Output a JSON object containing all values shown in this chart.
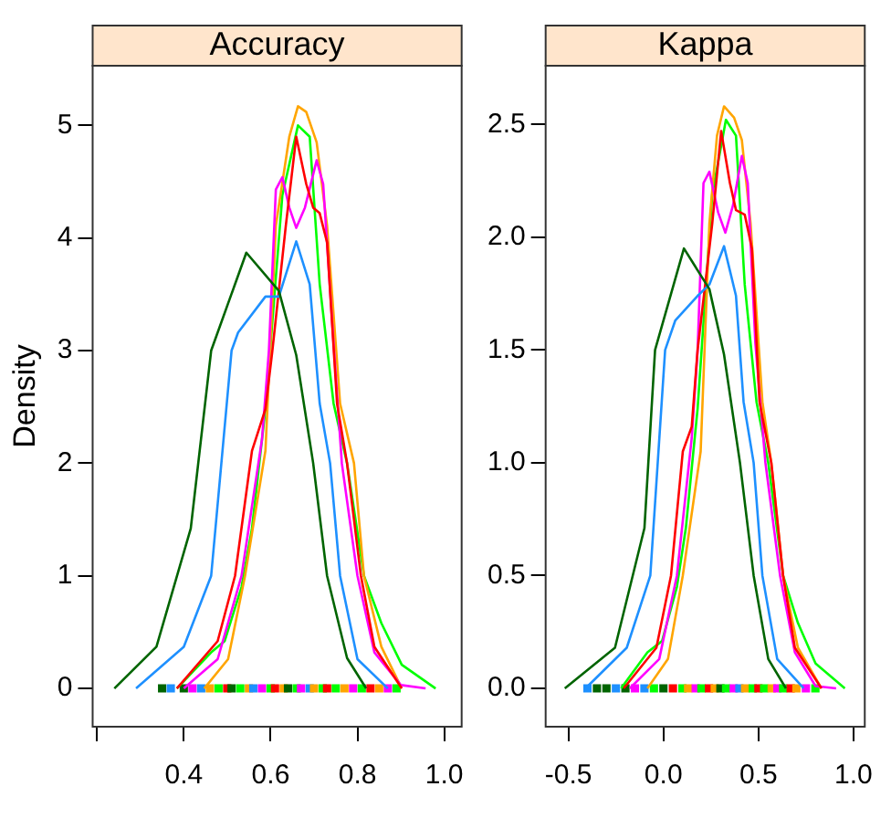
{
  "chart_data": [
    {
      "type": "line",
      "title": "Accuracy",
      "ylabel": "Density",
      "xlim": [
        0.19,
        1.04
      ],
      "xticks": [
        {
          "value": 0.2,
          "label": null
        },
        0.4,
        0.6,
        0.8,
        {
          "value": 1,
          "label": "1.0"
        }
      ],
      "ylim": [
        -0.34,
        5.53
      ],
      "yticks": [
        0,
        1,
        2,
        3,
        4,
        5
      ],
      "grid": false,
      "legend": false,
      "series": [
        {
          "color": "#006400",
          "x": [
            0.24,
            0.337,
            0.416,
            0.463,
            0.544,
            0.619,
            0.659,
            0.698,
            0.73,
            0.776,
            0.82
          ],
          "values": [
            0,
            0.37,
            1.42,
            3.0,
            3.87,
            3.53,
            2.96,
            2.0,
            1.0,
            0.27,
            0
          ]
        },
        {
          "color": "#1e90ff",
          "x": [
            0.29,
            0.4,
            0.463,
            0.51,
            0.525,
            0.588,
            0.619,
            0.659,
            0.69,
            0.713,
            0.737,
            0.76,
            0.8,
            0.87
          ],
          "values": [
            0,
            0.37,
            1.0,
            3.0,
            3.16,
            3.48,
            3.48,
            3.97,
            3.59,
            2.53,
            2.0,
            1.0,
            0.26,
            0
          ]
        },
        {
          "color": "#ff0000",
          "x": [
            0.384,
            0.478,
            0.518,
            0.557,
            0.588,
            0.604,
            0.635,
            0.659,
            0.682,
            0.698,
            0.713,
            0.73,
            0.753,
            0.776,
            0.808,
            0.839,
            0.902
          ],
          "values": [
            0,
            0.42,
            1.0,
            2.11,
            2.48,
            3.0,
            4.11,
            4.9,
            4.48,
            4.27,
            4.22,
            3.96,
            2.53,
            2.0,
            1.0,
            0.37,
            0
          ]
        },
        {
          "color": "#ff00ff",
          "x": [
            0.4,
            0.478,
            0.533,
            0.58,
            0.596,
            0.612,
            0.627,
            0.643,
            0.659,
            0.679,
            0.706,
            0.721,
            0.745,
            0.764,
            0.8,
            0.839,
            0.9,
            0.957
          ],
          "values": [
            0,
            0.26,
            1.0,
            2.21,
            3.0,
            4.43,
            4.54,
            4.27,
            4.09,
            4.27,
            4.69,
            4.48,
            3.06,
            2.0,
            1.0,
            0.32,
            0.03,
            0
          ]
        },
        {
          "color": "#ffa500",
          "x": [
            0.447,
            0.502,
            0.541,
            0.588,
            0.612,
            0.643,
            0.663,
            0.682,
            0.706,
            0.73,
            0.76,
            0.792,
            0.815,
            0.855,
            0.902
          ],
          "values": [
            0,
            0.26,
            1.0,
            2.11,
            4.11,
            4.9,
            5.17,
            5.12,
            4.85,
            4.11,
            2.53,
            2.0,
            1.0,
            0.37,
            0
          ]
        },
        {
          "color": "#00ff00",
          "x": [
            0.384,
            0.463,
            0.494,
            0.533,
            0.557,
            0.588,
            0.627,
            0.663,
            0.69,
            0.713,
            0.745,
            0.776,
            0.815,
            0.855,
            0.902,
            0.98
          ],
          "values": [
            0,
            0.32,
            0.42,
            0.9,
            1.42,
            2.48,
            4.38,
            5.0,
            4.9,
            3.59,
            2.53,
            2.0,
            1.0,
            0.58,
            0.21,
            0
          ]
        },
        {
          "type": "scatter",
          "marker": "square",
          "x": [
            0.35,
            0.37,
            0.4,
            0.42,
            0.44,
            0.46,
            0.48,
            0.5,
            0.51,
            0.53,
            0.55,
            0.56,
            0.58,
            0.6,
            0.61,
            0.63,
            0.64,
            0.66,
            0.67,
            0.69,
            0.7,
            0.72,
            0.73,
            0.75,
            0.77,
            0.79,
            0.81,
            0.83,
            0.85,
            0.87,
            0.89
          ],
          "values": [
            0,
            0,
            0,
            0,
            0,
            0,
            0,
            0,
            0,
            0,
            0,
            0,
            0,
            0,
            0,
            0,
            0,
            0,
            0,
            0,
            0,
            0,
            0,
            0,
            0,
            0,
            0,
            0,
            0,
            0,
            0
          ],
          "colors": [
            "#006400",
            "#1e90ff",
            "#006400",
            "#ff00ff",
            "#1e90ff",
            "#ffa500",
            "#00ff00",
            "#ff0000",
            "#006400",
            "#00ff00",
            "#ffa500",
            "#1e90ff",
            "#ff00ff",
            "#00ff00",
            "#ff0000",
            "#ffa500",
            "#006400",
            "#00ff00",
            "#ff00ff",
            "#1e90ff",
            "#ffa500",
            "#00ff00",
            "#ff0000",
            "#00ff00",
            "#ffa500",
            "#ff00ff",
            "#00ff00",
            "#ff0000",
            "#ffa500",
            "#ff00ff",
            "#00ff00"
          ]
        }
      ]
    },
    {
      "type": "line",
      "title": "Kappa",
      "xlim": [
        -0.62,
        1.06
      ],
      "xticks": [
        -0.5,
        {
          "value": 0,
          "label": "0.0"
        },
        0.5,
        {
          "value": 1,
          "label": "1.0"
        }
      ],
      "ylim": [
        -0.17,
        2.76
      ],
      "yticks": [
        {
          "value": 0,
          "label": "0.0"
        },
        0.5,
        {
          "value": 1,
          "label": "1.0"
        },
        1.5,
        {
          "value": 2,
          "label": "2.0"
        },
        2.5
      ],
      "grid": false,
      "legend": false,
      "series": [
        {
          "color": "#006400",
          "x": [
            -0.519,
            -0.255,
            -0.1,
            -0.044,
            0.108,
            0.242,
            0.319,
            0.403,
            0.475,
            0.552,
            0.645
          ],
          "values": [
            0,
            0.18,
            0.71,
            1.5,
            1.95,
            1.77,
            1.48,
            1.0,
            0.5,
            0.13,
            0
          ]
        },
        {
          "color": "#1e90ff",
          "x": [
            -0.41,
            -0.193,
            -0.069,
            0.009,
            0.062,
            0.18,
            0.242,
            0.319,
            0.382,
            0.422,
            0.475,
            0.521,
            0.599,
            0.738
          ],
          "values": [
            0,
            0.18,
            0.5,
            1.5,
            1.63,
            1.74,
            1.79,
            1.96,
            1.74,
            1.27,
            1.0,
            0.5,
            0.13,
            0
          ]
        },
        {
          "color": "#ff0000",
          "x": [
            -0.209,
            -0.037,
            0.04,
            0.102,
            0.149,
            0.18,
            0.257,
            0.304,
            0.35,
            0.382,
            0.428,
            0.466,
            0.506,
            0.568,
            0.63,
            0.692,
            0.832
          ],
          "values": [
            0,
            0.18,
            0.5,
            1.05,
            1.16,
            1.5,
            2.06,
            2.47,
            2.24,
            2.12,
            2.1,
            1.95,
            1.27,
            1.0,
            0.5,
            0.18,
            0
          ]
        },
        {
          "color": "#ff00ff",
          "x": [
            -0.177,
            -0.022,
            0.071,
            0.149,
            0.18,
            0.211,
            0.242,
            0.288,
            0.326,
            0.366,
            0.413,
            0.444,
            0.484,
            0.537,
            0.614,
            0.692,
            0.801,
            0.909
          ],
          "values": [
            0,
            0.13,
            0.5,
            1.11,
            1.5,
            2.24,
            2.29,
            2.11,
            2.02,
            2.14,
            2.36,
            2.24,
            1.53,
            1.0,
            0.5,
            0.16,
            0.01,
            0
          ]
        },
        {
          "color": "#ffa500",
          "x": [
            -0.084,
            0.024,
            0.102,
            0.196,
            0.242,
            0.282,
            0.319,
            0.372,
            0.413,
            0.459,
            0.521,
            0.568,
            0.63,
            0.708,
            0.832
          ],
          "values": [
            0,
            0.13,
            0.5,
            1.05,
            2.06,
            2.45,
            2.58,
            2.53,
            2.43,
            2.06,
            1.27,
            1.0,
            0.5,
            0.18,
            0
          ]
        },
        {
          "color": "#00ff00",
          "x": [
            -0.223,
            -0.084,
            -0.007,
            0.071,
            0.118,
            0.18,
            0.257,
            0.329,
            0.382,
            0.428,
            0.49,
            0.552,
            0.63,
            0.708,
            0.801,
            0.955
          ],
          "values": [
            0,
            0.16,
            0.21,
            0.45,
            0.71,
            1.24,
            2.19,
            2.52,
            2.45,
            1.79,
            1.27,
            1.0,
            0.5,
            0.29,
            0.11,
            0
          ]
        },
        {
          "type": "scatter",
          "marker": "square",
          "x": [
            -0.4,
            -0.35,
            -0.3,
            -0.25,
            -0.2,
            -0.15,
            -0.1,
            -0.05,
            0.0,
            0.05,
            0.1,
            0.13,
            0.17,
            0.2,
            0.24,
            0.27,
            0.3,
            0.33,
            0.37,
            0.4,
            0.43,
            0.47,
            0.5,
            0.53,
            0.57,
            0.6,
            0.63,
            0.67,
            0.7,
            0.75,
            0.8
          ],
          "values": [
            0,
            0,
            0,
            0,
            0,
            0,
            0,
            0,
            0,
            0,
            0,
            0,
            0,
            0,
            0,
            0,
            0,
            0,
            0,
            0,
            0,
            0,
            0,
            0,
            0,
            0,
            0,
            0,
            0,
            0,
            0
          ],
          "colors": [
            "#1e90ff",
            "#006400",
            "#006400",
            "#1e90ff",
            "#006400",
            "#ff00ff",
            "#1e90ff",
            "#00ff00",
            "#006400",
            "#ff0000",
            "#00ff00",
            "#ffa500",
            "#ff00ff",
            "#00ff00",
            "#ff0000",
            "#ffa500",
            "#006400",
            "#00ff00",
            "#ff00ff",
            "#1e90ff",
            "#ffa500",
            "#00ff00",
            "#ff0000",
            "#00ff00",
            "#ffa500",
            "#ff00ff",
            "#00ff00",
            "#ff0000",
            "#ffa500",
            "#ff00ff",
            "#00ff00"
          ]
        }
      ]
    }
  ]
}
